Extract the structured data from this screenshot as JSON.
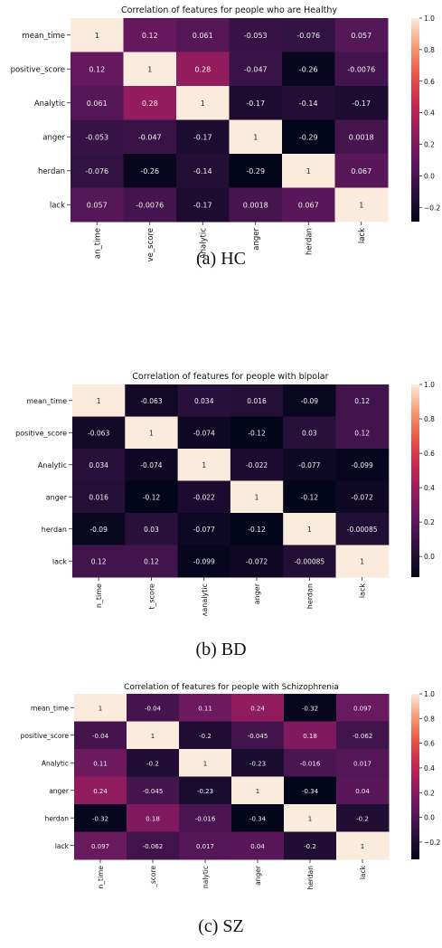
{
  "chart_data": [
    {
      "type": "heatmap",
      "title": "Correlation of features for people who are Healthy",
      "row_labels": [
        "mean_time",
        "positive_score",
        "Analytic",
        "anger",
        "herdan",
        "lack"
      ],
      "col_labels": [
        "an_time",
        "ve_score",
        "Analytic",
        "anger",
        "herdan",
        "lack"
      ],
      "values": [
        [
          1,
          0.12,
          0.061,
          -0.053,
          -0.076,
          0.057
        ],
        [
          0.12,
          1,
          0.28,
          -0.047,
          -0.26,
          -0.0076
        ],
        [
          0.061,
          0.28,
          1,
          -0.17,
          -0.14,
          -0.17
        ],
        [
          -0.053,
          -0.047,
          -0.17,
          1,
          -0.29,
          0.0018
        ],
        [
          -0.076,
          -0.26,
          -0.14,
          -0.29,
          1,
          0.067
        ],
        [
          0.057,
          -0.0076,
          -0.17,
          0.0018,
          0.067,
          1
        ]
      ],
      "colorbar": {
        "range": [
          -0.29,
          1
        ],
        "ticks": [
          "1.0",
          "0.8",
          "0.6",
          "0.4",
          "0.2",
          "0.0",
          "−0.2"
        ]
      },
      "caption": "(a) HC"
    },
    {
      "type": "heatmap",
      "title": "Correlation of features for people with bipolar",
      "row_labels": [
        "mean_time",
        "positive_score",
        "Analytic",
        "anger",
        "herdan",
        "lack"
      ],
      "col_labels": [
        "n_time",
        "t_score",
        "ʌanalytic",
        "anger",
        "herdan",
        "lack"
      ],
      "values": [
        [
          1,
          -0.063,
          0.034,
          0.016,
          -0.09,
          0.12
        ],
        [
          -0.063,
          1,
          -0.074,
          -0.12,
          0.03,
          0.12
        ],
        [
          0.034,
          -0.074,
          1,
          -0.022,
          -0.077,
          -0.099
        ],
        [
          0.016,
          -0.12,
          -0.022,
          1,
          -0.12,
          -0.072
        ],
        [
          -0.09,
          0.03,
          -0.077,
          -0.12,
          1,
          -0.00085
        ],
        [
          0.12,
          0.12,
          -0.099,
          -0.072,
          -0.00085,
          1
        ]
      ],
      "colorbar": {
        "range": [
          -0.12,
          1
        ],
        "ticks": [
          "1.0",
          "0.8",
          "0.6",
          "0.4",
          "0.2",
          "0.0"
        ]
      },
      "caption": "(b) BD"
    },
    {
      "type": "heatmap",
      "title": "Correlation of features for people with Schizophrenia",
      "row_labels": [
        "mean_time",
        "positive_score",
        "Analytic",
        "anger",
        "herdan",
        "lack"
      ],
      "col_labels": [
        "n_time",
        "_score",
        "nalytic",
        "anger",
        "herdan",
        "lack"
      ],
      "values": [
        [
          1,
          -0.04,
          0.11,
          0.24,
          -0.32,
          0.097
        ],
        [
          -0.04,
          1,
          -0.2,
          -0.045,
          0.18,
          -0.062
        ],
        [
          0.11,
          -0.2,
          1,
          -0.23,
          -0.016,
          0.017
        ],
        [
          0.24,
          -0.045,
          -0.23,
          1,
          -0.34,
          0.04
        ],
        [
          -0.32,
          0.18,
          -0.016,
          -0.34,
          1,
          -0.2
        ],
        [
          0.097,
          -0.062,
          0.017,
          0.04,
          -0.2,
          1
        ]
      ],
      "colorbar": {
        "range": [
          -0.34,
          1
        ],
        "ticks": [
          "1.0",
          "0.8",
          "0.6",
          "0.4",
          "0.2",
          "0.0",
          "−0.2"
        ]
      },
      "caption": "(c) SZ"
    }
  ]
}
